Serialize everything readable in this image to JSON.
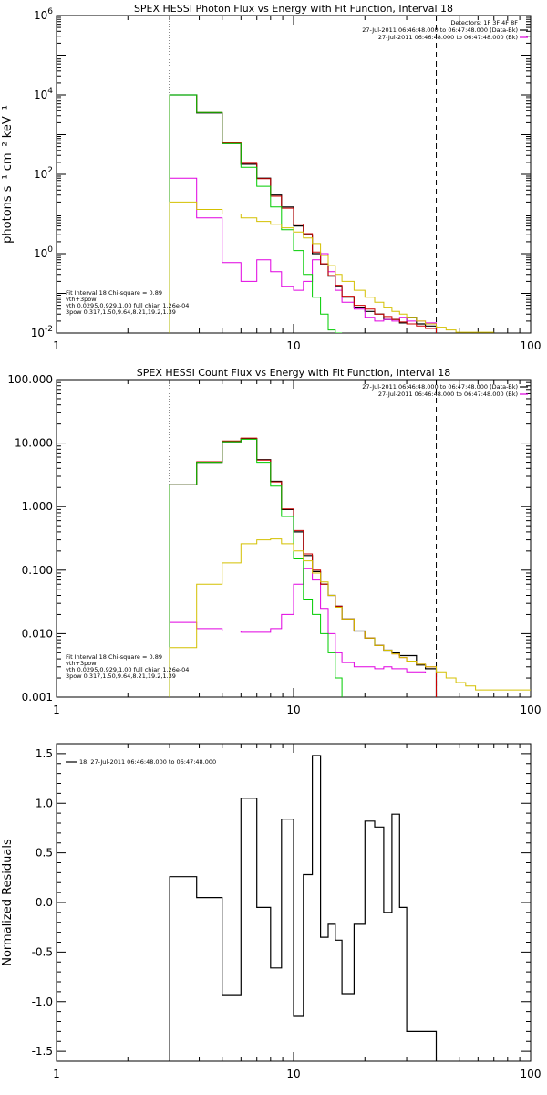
{
  "chart_data": [
    {
      "type": "line",
      "title": "SPEX HESSI Photon Flux vs Energy with Fit Function, Interval 18",
      "ylabel": "photons s⁻¹ cm⁻² keV⁻¹",
      "xlabel": "",
      "xscale": "log",
      "yscale": "log",
      "xlim": [
        1,
        100
      ],
      "ylim": [
        0.01,
        1000000
      ],
      "xticks": [
        "1",
        "10",
        "100"
      ],
      "yticks": [
        {
          "v": 1000000,
          "mant": "10",
          "exp": "6"
        },
        {
          "v": 10000,
          "mant": "10",
          "exp": "4"
        },
        {
          "v": 100,
          "mant": "10",
          "exp": "2"
        },
        {
          "v": 1,
          "mant": "10",
          "exp": "0"
        },
        {
          "v": 0.01,
          "mant": "10",
          "exp": "-2"
        }
      ],
      "vlines": [
        {
          "x": 3.0,
          "style": "dotted"
        },
        {
          "x": 40,
          "style": "dashed"
        }
      ],
      "legend_top": [
        {
          "text": "Detectors: 1F 3F 4F 8F",
          "color": ""
        },
        {
          "text": "27-Jul-2011 06:46:48.000 to 06:47:48.000 (Data-Bk)",
          "color": "#000000"
        },
        {
          "text": "27-Jul-2011 06:46:48.000 to 06:47:48.000 (Bk)",
          "color": "#e000e0"
        }
      ],
      "legend_bottom": [
        {
          "text": "Fit Interval 18   Chi-square = 0.89",
          "color": ""
        },
        {
          "text": "vth+3pow",
          "color": "#cc0000"
        },
        {
          "text": "vth 0.0295,0.929,1.00  full chian 1.26e-04",
          "color": "#00cc00"
        },
        {
          "text": "3pow 0.317,1.50,9.64,8.21,19.2,1.39",
          "color": "#d4c000"
        }
      ],
      "edges": [
        3.0,
        3.9,
        5.0,
        6.0,
        7.0,
        8.0,
        8.9,
        10.0,
        11.0,
        12.0,
        13.0,
        14.0,
        15.0,
        16.0,
        18.0,
        20.0,
        22.0,
        24.0,
        26.0,
        28.0,
        30.0,
        33.0,
        36.0,
        40.0
      ],
      "series": [
        {
          "name": "Data-Bk",
          "color": "#000000",
          "width": 1.2,
          "start": 3.0,
          "end": 40,
          "values": [
            10000,
            3500,
            600,
            180,
            80,
            30,
            15,
            5,
            3,
            1.0,
            0.55,
            0.27,
            0.15,
            0.08,
            0.045,
            0.035,
            0.03,
            0.022,
            0.022,
            0.018,
            0.025,
            0.017,
            0.015
          ]
        },
        {
          "name": "Bk",
          "color": "#e000e0",
          "width": 1,
          "start": 3.0,
          "end": 40,
          "values": [
            80,
            8,
            0.6,
            0.2,
            0.7,
            0.35,
            0.15,
            0.12,
            0.2,
            0.7,
            1.0,
            0.35,
            0.12,
            0.06,
            0.04,
            0.025,
            0.02,
            0.022,
            0.02,
            0.025,
            0.02,
            0.02,
            0.018
          ]
        },
        {
          "name": "vth+3pow",
          "color": "#cc0000",
          "width": 1,
          "start": 3.0,
          "end": 40,
          "values": [
            10000,
            3600,
            620,
            190,
            78,
            28,
            14,
            5.5,
            3.2,
            1.1,
            0.56,
            0.28,
            0.16,
            0.085,
            0.05,
            0.04,
            0.03,
            0.026,
            0.022,
            0.019,
            0.017,
            0.015,
            0.013
          ]
        },
        {
          "name": "vth",
          "color": "#00cc00",
          "width": 1,
          "start": 3.0,
          "end": 16.0,
          "values": [
            10000,
            3600,
            600,
            150,
            50,
            15,
            4,
            1.2,
            0.3,
            0.08,
            0.03,
            0.012,
            0.006
          ]
        },
        {
          "name": "3pow",
          "color": "#d4c000",
          "width": 1,
          "start": 3.0,
          "end": 70,
          "values": [
            20,
            13,
            10,
            8,
            6.5,
            5.5,
            4.5,
            3.5,
            2.5,
            1.8,
            0.9,
            0.5,
            0.3,
            0.2,
            0.12,
            0.08,
            0.06,
            0.045,
            0.035,
            0.03,
            0.025,
            0.02,
            0.017,
            0.014,
            0.012,
            0.0105
          ]
        }
      ]
    },
    {
      "type": "line",
      "title": "SPEX HESSI Count Flux vs Energy with Fit Function, Interval 18",
      "ylabel": "",
      "xlabel": "",
      "xscale": "log",
      "yscale": "log",
      "xlim": [
        1,
        100
      ],
      "ylim": [
        0.001,
        100
      ],
      "xticks": [
        "1",
        "10",
        "100"
      ],
      "yticks": [
        {
          "v": 100,
          "label": "100.000"
        },
        {
          "v": 10,
          "label": "10.000"
        },
        {
          "v": 1,
          "label": "1.000"
        },
        {
          "v": 0.1,
          "label": "0.100"
        },
        {
          "v": 0.01,
          "label": "0.010"
        },
        {
          "v": 0.001,
          "label": "0.001"
        }
      ],
      "vlines": [
        {
          "x": 3.0,
          "style": "dotted"
        },
        {
          "x": 40,
          "style": "dashed"
        }
      ],
      "legend_top": [
        {
          "text": "27-Jul-2011 06:46:48.000 to 06:47:48.000 (Data-Bk)",
          "color": "#000000"
        },
        {
          "text": "27-Jul-2011 06:46:48.000 to 06:47:48.000 (Bk)",
          "color": "#e000e0"
        }
      ],
      "legend_bottom": [
        {
          "text": "Fit Interval 18   Chi-square = 0.89",
          "color": ""
        },
        {
          "text": "vth+3pow",
          "color": "#cc0000"
        },
        {
          "text": "vth 0.0295,0.929,1.00  full chian 1.26e-04",
          "color": "#00cc00"
        },
        {
          "text": "3pow 0.317,1.50,9.64,8.21,19.2,1.39",
          "color": "#d4c000"
        }
      ],
      "edges": [
        3.0,
        3.9,
        5.0,
        6.0,
        7.0,
        8.0,
        8.9,
        10.0,
        11.0,
        12.0,
        13.0,
        14.0,
        15.0,
        16.0,
        18.0,
        20.0,
        22.0,
        24.0,
        26.0,
        28.0,
        30.0,
        33.0,
        36.0,
        40.0
      ],
      "series": [
        {
          "name": "Data-Bk",
          "color": "#000000",
          "width": 1.2,
          "start": 3.0,
          "end": 40,
          "values": [
            2.2,
            5.0,
            10.5,
            11.8,
            5.5,
            2.5,
            0.9,
            0.4,
            0.17,
            0.095,
            0.06,
            0.04,
            0.027,
            0.017,
            0.011,
            0.0085,
            0.0065,
            0.0055,
            0.005,
            0.0045,
            0.0045,
            0.0032,
            0.0028
          ]
        },
        {
          "name": "Bk",
          "color": "#e000e0",
          "width": 1,
          "start": 3.0,
          "end": 40,
          "values": [
            0.015,
            0.012,
            0.011,
            0.0105,
            0.0105,
            0.012,
            0.02,
            0.06,
            0.105,
            0.07,
            0.025,
            0.01,
            0.005,
            0.0035,
            0.003,
            0.003,
            0.0028,
            0.003,
            0.0028,
            0.0028,
            0.0025,
            0.0025,
            0.0024
          ]
        },
        {
          "name": "vth+3pow",
          "color": "#cc0000",
          "width": 1,
          "start": 3.0,
          "end": 40,
          "values": [
            2.2,
            5.1,
            10.8,
            12.0,
            5.4,
            2.45,
            0.92,
            0.42,
            0.18,
            0.1,
            0.06,
            0.04,
            0.027,
            0.017,
            0.011,
            0.0085,
            0.0065,
            0.0055,
            0.0048,
            0.0042,
            0.0037,
            0.0033,
            0.003
          ]
        },
        {
          "name": "vth",
          "color": "#00cc00",
          "width": 1,
          "start": 3.0,
          "end": 16.0,
          "values": [
            2.2,
            5.0,
            10.5,
            11.5,
            5.0,
            2.1,
            0.7,
            0.15,
            0.035,
            0.02,
            0.01,
            0.005,
            0.002
          ]
        },
        {
          "name": "3pow",
          "color": "#d4c000",
          "width": 1,
          "start": 3.0,
          "end": 100,
          "values": [
            0.006,
            0.06,
            0.13,
            0.26,
            0.3,
            0.31,
            0.26,
            0.2,
            0.14,
            0.09,
            0.065,
            0.04,
            0.026,
            0.017,
            0.011,
            0.0085,
            0.0065,
            0.0055,
            0.0048,
            0.0042,
            0.0037,
            0.0033,
            0.003,
            0.0025,
            0.002,
            0.0017,
            0.0015,
            0.0013
          ]
        }
      ]
    },
    {
      "type": "line",
      "title": "",
      "ylabel": "Normalized Residuals",
      "xlabel": "",
      "xscale": "log",
      "yscale": "linear",
      "xlim": [
        1,
        100
      ],
      "ylim": [
        -1.6,
        1.6
      ],
      "xticks": [
        "1",
        "10",
        "100"
      ],
      "yticks": [
        {
          "v": 1.5,
          "label": "1.5"
        },
        {
          "v": 1.0,
          "label": "1.0"
        },
        {
          "v": 0.5,
          "label": "0.5"
        },
        {
          "v": 0.0,
          "label": "0.0"
        },
        {
          "v": -0.5,
          "label": "-0.5"
        },
        {
          "v": -1.0,
          "label": "-1.0"
        },
        {
          "v": -1.5,
          "label": "-1.5"
        }
      ],
      "legend_top_left": "18. 27-Jul-2011 06:46:48.000 to 06:47:48.000",
      "edges": [
        3.0,
        3.9,
        5.0,
        6.0,
        7.0,
        8.0,
        8.9,
        10.0,
        11.0,
        12.0,
        13.0,
        14.0,
        15.0,
        16.0,
        18.0,
        20.0,
        22.0,
        24.0,
        26.0,
        28.0,
        30.0,
        33.0,
        36.0,
        40.0
      ],
      "series": [
        {
          "name": "18. 27-Jul-2011 06:46:48.000 to 06:47:48.000",
          "color": "#000000",
          "width": 1.2,
          "start": 3.0,
          "end": 40,
          "values": [
            0.26,
            0.05,
            -0.93,
            1.05,
            -0.05,
            -0.66,
            0.84,
            -1.14,
            0.28,
            1.48,
            -0.35,
            -0.22,
            -0.38,
            -0.92,
            -0.22,
            0.82,
            0.76,
            -0.1,
            0.89,
            -0.05,
            -1.3,
            -1.3,
            -1.3
          ]
        }
      ]
    }
  ]
}
